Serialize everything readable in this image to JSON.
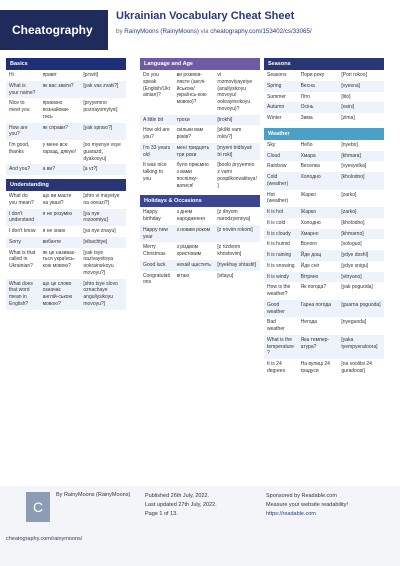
{
  "header": {
    "logo": "Cheatography",
    "title": "Ukrainian Vocabulary Cheat Sheet",
    "by": "by",
    "author": "RainyMoons (RainyMoons)",
    "via": "via",
    "url": "cheatography.com/153402/cs/33065/"
  },
  "basics": {
    "title": "Basics",
    "rows": [
      [
        "Hi",
        "привіт",
        "[pɾɪvʲit]"
      ],
      [
        "What is your name?",
        "як вас звати?",
        "[yak vas zvatʲi?]"
      ],
      [
        "Nice to meet you",
        "приємно познайоми-тись",
        "[pryyemno poznayomytysʲ]"
      ],
      [
        "How are you?",
        "як справи?",
        "[yak spravɪ?]"
      ],
      [
        "I'm good, thanks",
        "у мене все гаразд, дякую!",
        "[oo myenye vsye guarazd, dyakooyu]"
      ],
      [
        "And you?",
        "а ви?",
        "[a vɪ?]"
      ]
    ]
  },
  "understanding": {
    "title": "Understanding",
    "rows": [
      [
        "What do you mean?",
        "що ви маєте на увазі?",
        "[shto vi mayetye na oovazi?]"
      ],
      [
        "I don't understand",
        "я не розумію",
        "[ya nye rozoomiyu]"
      ],
      [
        "I don't know",
        "я не знаю",
        "[ya nye znayu]"
      ],
      [
        "Sorry",
        "вибачте",
        "[vibachtye]"
      ],
      [
        "What is that called in Ukrainian?",
        "як це називає-ться українсь-кою мовою?",
        "[yak tsye nazivayetʲsya ookrainsʲkoyu movoyu?]"
      ],
      [
        "What does that word mean in English?",
        "що це слово означає англій-ською мовою?",
        "[shto tsye slovo oznachaye anguliysʲkoyu movoyu?]"
      ]
    ]
  },
  "language": {
    "title": "Language and Age",
    "rows": [
      [
        "Do you speak (English/Ukrainian)?",
        "ви розмов-ляєте (англі-йською/ українсь-кою мовою)?",
        "vi rozmovlyayetye (anuliysʲkoyu movoyu/ ookrayinsʲkoyu movoyu)?"
      ],
      [
        "A little bit",
        "трохи",
        "[trokhi]"
      ],
      [
        "How old are you?",
        "скільки вам років?",
        "[skilʲki vam rokiv?]"
      ],
      [
        "I'm 33 years old",
        "мені тридцять три роки",
        "[myeni tridtsyatʲ tri roki]"
      ],
      [
        "It was nice talking to you",
        "було приємно з вами поспілку-ватися!",
        "[boolo pryyemno z vami pospilkoovatitsya!]"
      ]
    ]
  },
  "holidays": {
    "title": "Holidays & Occasions",
    "rows": [
      [
        "Happy birthday",
        "з днем народження",
        "[z dnyom narodzyennya]"
      ],
      [
        "Happy new year",
        "з новим роком",
        "[z novim rokom]"
      ],
      [
        "Merry Christmas",
        "з різдвом христовим",
        "[z rizdvom khristovim]"
      ],
      [
        "Good luck",
        "нехай щастить",
        "[nyekhay shtastit]"
      ],
      [
        "Congratulations",
        "вітаю",
        "[vitayu]"
      ]
    ]
  },
  "seasons": {
    "title": "Seasons",
    "rows": [
      [
        "Seasons",
        "Пори року",
        "[Pori rokoo]"
      ],
      [
        "Spring",
        "Весна",
        "[vyesna]"
      ],
      [
        "Summer",
        "Літо",
        "[lito]"
      ],
      [
        "Autumn",
        "Осінь",
        "[osinʲ]"
      ],
      [
        "Winter",
        "Зима",
        "[zima]"
      ]
    ]
  },
  "weather": {
    "title": "Weather",
    "rows": [
      [
        "Sky",
        "Небо",
        "[nyebo]"
      ],
      [
        "Cloud",
        "Хмара",
        "[khmara]"
      ],
      [
        "Rainbow",
        "Веселка",
        "[vyesyelka]"
      ],
      [
        "Cold (weather)",
        "Холодно",
        "[kholodno]"
      ],
      [
        "Hot (weather)",
        "Жарко",
        "[zarko]"
      ],
      [
        "It is hot",
        "Жарко",
        "[zarko]"
      ],
      [
        "It is cold",
        "Холодно",
        "[kholodno]"
      ],
      [
        "It is cloudy",
        "Хмарно",
        "[khmarno]"
      ],
      [
        "It is humid",
        "Волого",
        "[vologuo]"
      ],
      [
        "It is raining",
        "Йде дощ",
        "[ydye doshl]"
      ],
      [
        "It is snowing",
        "Йде сніг",
        "[ydye snigu]"
      ],
      [
        "It is windy",
        "Вітряно",
        "[vitryano]"
      ],
      [
        "How is the weather?",
        "Як погода?",
        "[yak poguoda]"
      ],
      [
        "Good weather",
        "Гарна погода",
        "[guarna poguoda]"
      ],
      [
        "Bad weather",
        "Негода",
        "[nyeguoda]"
      ],
      [
        "What is the temperature?",
        "Яка темпер-атура?",
        "[yaka tyempyeratoora]"
      ],
      [
        "It is 24 degrees",
        "На вулиці 24 градуси",
        "[na voolitsi 24 guradoosi]"
      ]
    ]
  },
  "footer": {
    "avatar_letter": "C",
    "author": "By RainyMoons (RainyMoons)",
    "author_link": "cheatography.com/rainymoons/",
    "published": "Published 26th July, 2022.",
    "updated": "Last updated 27th July, 2022.",
    "page": "Page 1 of 13.",
    "sponsor": "Sponsored by Readable.com",
    "sponsor_text": "Measure your website readability!",
    "sponsor_link": "https://readable.com"
  }
}
